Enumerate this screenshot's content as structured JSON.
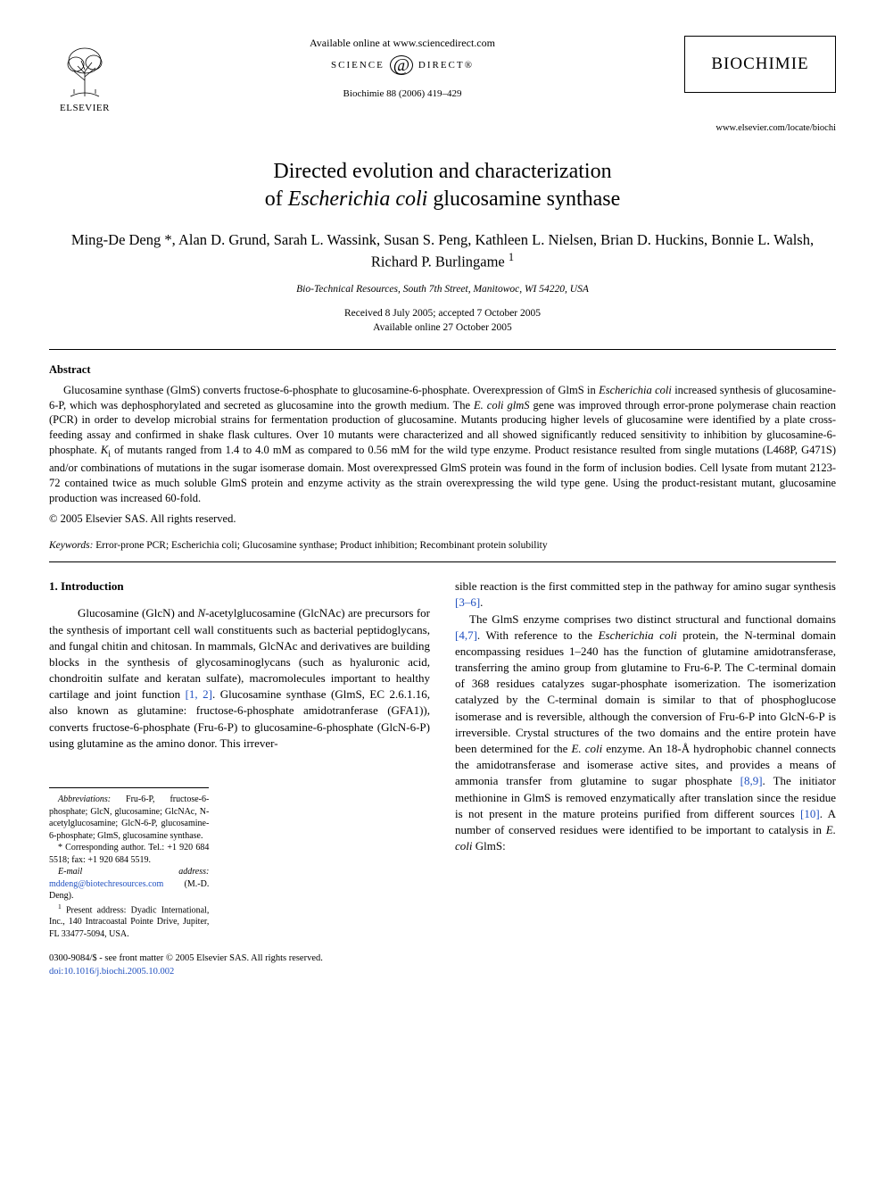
{
  "header": {
    "available_online": "Available online at www.sciencedirect.com",
    "sciencedirect_left": "SCIENCE",
    "sciencedirect_right": "DIRECT®",
    "citation": "Biochimie 88 (2006) 419–429",
    "publisher_name": "ELSEVIER",
    "journal_title": "BIOCHIMIE",
    "journal_url": "www.elsevier.com/locate/biochi"
  },
  "article": {
    "title_line1": "Directed evolution and characterization",
    "title_line2_pre": "of ",
    "title_line2_ital": "Escherichia coli",
    "title_line2_post": " glucosamine synthase",
    "authors": "Ming-De Deng *, Alan D. Grund, Sarah L. Wassink, Susan S. Peng, Kathleen L. Nielsen, Brian D. Huckins, Bonnie L. Walsh, Richard P. Burlingame ",
    "author_sup": "1",
    "affiliation": "Bio-Technical Resources, South 7th Street, Manitowoc, WI 54220, USA",
    "received": "Received 8 July 2005; accepted 7 October 2005",
    "available": "Available online 27 October 2005"
  },
  "abstract": {
    "heading": "Abstract",
    "body_parts": [
      {
        "t": "plain",
        "v": "Glucosamine synthase (GlmS) converts fructose-6-phosphate to glucosamine-6-phosphate. Overexpression of GlmS in "
      },
      {
        "t": "ital",
        "v": "Escherichia coli"
      },
      {
        "t": "plain",
        "v": " increased synthesis of glucosamine-6-P, which was dephosphorylated and secreted as glucosamine into the growth medium. The "
      },
      {
        "t": "ital",
        "v": "E. coli glmS"
      },
      {
        "t": "plain",
        "v": " gene was improved through error-prone polymerase chain reaction (PCR) in order to develop microbial strains for fermentation production of glucosamine. Mutants producing higher levels of glucosamine were identified by a plate cross-feeding assay and confirmed in shake flask cultures. Over 10 mutants were characterized and all showed significantly reduced sensitivity to inhibition by glucosamine-6-phosphate. "
      },
      {
        "t": "ital",
        "v": "K"
      },
      {
        "t": "sub",
        "v": "i"
      },
      {
        "t": "plain",
        "v": " of mutants ranged from 1.4 to 4.0 mM as compared to 0.56 mM for the wild type enzyme. Product resistance resulted from single mutations (L468P, G471S) and/or combinations of mutations in the sugar isomerase domain. Most overexpressed GlmS protein was found in the form of inclusion bodies. Cell lysate from mutant 2123-72 contained twice as much soluble GlmS protein and enzyme activity as the strain overexpressing the wild type gene. Using the product-resistant mutant, glucosamine production was increased 60-fold."
      }
    ],
    "copyright": "© 2005 Elsevier SAS. All rights reserved."
  },
  "keywords": {
    "label": "Keywords:",
    "value": " Error-prone PCR; Escherichia coli; Glucosamine synthase; Product inhibition; Recombinant protein solubility"
  },
  "intro": {
    "heading": "1. Introduction",
    "col1_parts": [
      {
        "t": "indent"
      },
      {
        "t": "plain",
        "v": "Glucosamine (GlcN) and "
      },
      {
        "t": "ital",
        "v": "N"
      },
      {
        "t": "plain",
        "v": "-acetylglucosamine (GlcNAc) are precursors for the synthesis of important cell wall constituents such as bacterial peptidoglycans, and fungal chitin and chitosan. In mammals, GlcNAc and derivatives are building blocks in the synthesis of glycosaminoglycans (such as hyaluronic acid, chondroitin sulfate and keratan sulfate), macromolecules important to healthy cartilage and joint function "
      },
      {
        "t": "ref",
        "v": "[1, 2]"
      },
      {
        "t": "plain",
        "v": ". Glucosamine synthase (GlmS, EC 2.6.1.16, also known as glutamine: fructose-6-phosphate amidotranferase (GFA1)), converts fructose-6-phosphate (Fru-6-P) to glucosamine-6-phosphate (GlcN-6-P) using glutamine as the amino donor. This irrever-"
      }
    ],
    "col2_parts": [
      {
        "t": "plain",
        "v": "sible reaction is the first committed step in the pathway for amino sugar synthesis "
      },
      {
        "t": "ref",
        "v": "[3–6]"
      },
      {
        "t": "plain",
        "v": "."
      },
      {
        "t": "br"
      },
      {
        "t": "indent"
      },
      {
        "t": "plain",
        "v": "The GlmS enzyme comprises two distinct structural and functional domains "
      },
      {
        "t": "ref",
        "v": "[4,7]"
      },
      {
        "t": "plain",
        "v": ". With reference to the "
      },
      {
        "t": "ital",
        "v": "Escherichia coli"
      },
      {
        "t": "plain",
        "v": " protein, the N-terminal domain encompassing residues 1–240 has the function of glutamine amidotransferase, transferring the amino group from glutamine to Fru-6-P. The C-terminal domain of 368 residues catalyzes sugar-phosphate isomerization. The isomerization catalyzed by the C-terminal domain is similar to that of phosphoglucose isomerase and is reversible, although the conversion of Fru-6-P into GlcN-6-P is irreversible. Crystal structures of the two domains and the entire protein have been determined for the "
      },
      {
        "t": "ital",
        "v": "E. coli"
      },
      {
        "t": "plain",
        "v": " enzyme. An 18-Å hydrophobic channel connects the amidotransferase and isomerase active sites, and provides a means of ammonia transfer from glutamine to sugar phosphate "
      },
      {
        "t": "ref",
        "v": "[8,9]"
      },
      {
        "t": "plain",
        "v": ". The initiator methionine in GlmS is removed enzymatically after translation since the residue is not present in the mature proteins purified from different sources "
      },
      {
        "t": "ref",
        "v": "[10]"
      },
      {
        "t": "plain",
        "v": ". A number of conserved residues were identified to be important to catalysis in "
      },
      {
        "t": "ital",
        "v": "E. coli"
      },
      {
        "t": "plain",
        "v": " GlmS:"
      }
    ]
  },
  "footnotes": {
    "abbrev_label": "Abbreviations:",
    "abbrev": " Fru-6-P, fructose-6-phosphate; GlcN, glucosamine; GlcNAc, N-acetylglucosamine; GlcN-6-P, glucosamine-6-phosphate; GlmS, glucosamine synthase.",
    "corresp": "* Corresponding author. Tel.: +1 920 684 5518; fax: +1 920 684 5519.",
    "email_label": "E-mail address:",
    "email": " mddeng@biotechresources.com",
    "email_post": " (M.-D. Deng).",
    "present_sup": "1",
    "present": " Present address: Dyadic International, Inc., 140 Intracoastal Pointe Drive, Jupiter, FL 33477-5094, USA."
  },
  "footer": {
    "issn": "0300-9084/$ - see front matter © 2005 Elsevier SAS. All rights reserved.",
    "doi": "doi:10.1016/j.biochi.2005.10.002"
  },
  "colors": {
    "text": "#000000",
    "link": "#2050c0",
    "bg": "#ffffff"
  }
}
